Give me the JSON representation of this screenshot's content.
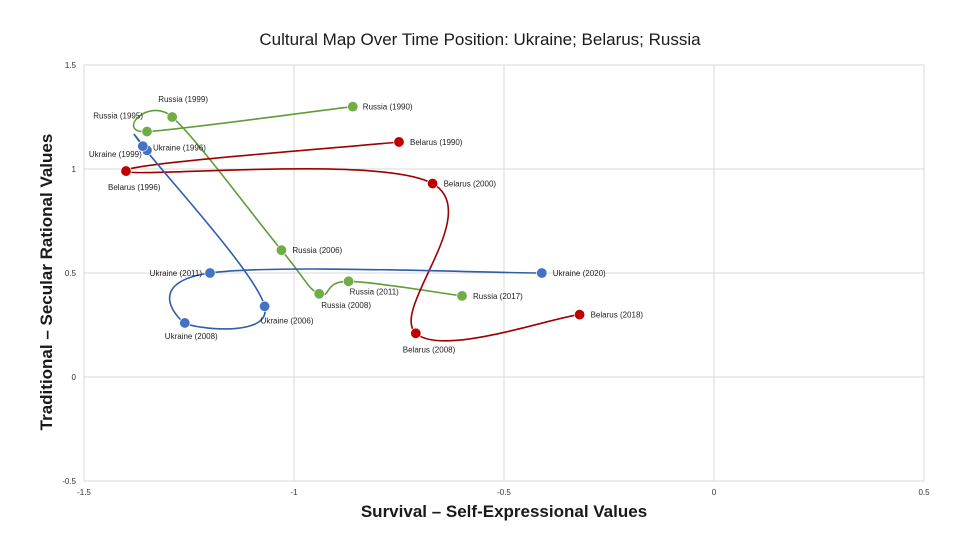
{
  "chart_data": {
    "type": "scatter",
    "title": "Cultural Map Over Time Position: Ukraine; Belarus; Russia",
    "xlabel": "Survival – Self-Expressional Values",
    "ylabel": "Traditional – Secular Rational Values",
    "xlim": [
      -1.5,
      0.5
    ],
    "ylim": [
      -0.5,
      1.5
    ],
    "x_ticks": [
      "-1.5",
      "-1",
      "-0.5",
      "0",
      "0.5"
    ],
    "y_ticks": [
      "-0.5",
      "0",
      "0.5",
      "1",
      "1.5"
    ],
    "grid": true,
    "legend": "none",
    "series": [
      {
        "color": "#70ad47",
        "points": [
          {
            "label": "Russia (1990)",
            "x": -0.86,
            "y": 1.3
          },
          {
            "label": "Russia (1995)",
            "x": -1.35,
            "y": 1.18
          },
          {
            "label": "Russia (1999)",
            "x": -1.29,
            "y": 1.25
          },
          {
            "label": "Russia (2006)",
            "x": -1.03,
            "y": 0.61
          },
          {
            "label": "Russia (2008)",
            "x": -0.94,
            "y": 0.4
          },
          {
            "label": "Russia (2011)",
            "x": -0.87,
            "y": 0.46
          },
          {
            "label": "Russia (2017)",
            "x": -0.6,
            "y": 0.39
          }
        ]
      },
      {
        "color": "#c00000",
        "points": [
          {
            "label": "Belarus (1990)",
            "x": -0.75,
            "y": 1.13
          },
          {
            "label": "Belarus (1996)",
            "x": -1.4,
            "y": 0.99
          },
          {
            "label": "Belarus (2000)",
            "x": -0.67,
            "y": 0.93
          },
          {
            "label": "Belarus (2008)",
            "x": -0.71,
            "y": 0.21
          },
          {
            "label": "Belarus (2018)",
            "x": -0.32,
            "y": 0.3
          }
        ]
      },
      {
        "color": "#4472c4",
        "points": [
          {
            "label": "Ukraine (1996)",
            "x": -1.35,
            "y": 1.09
          },
          {
            "label": "Ukraine (1999)",
            "x": -1.36,
            "y": 1.11
          },
          {
            "label": "Ukraine (2006)",
            "x": -1.07,
            "y": 0.34
          },
          {
            "label": "Ukraine (2008)",
            "x": -1.26,
            "y": 0.26
          },
          {
            "label": "Ukraine (2011)",
            "x": -1.2,
            "y": 0.5
          },
          {
            "label": "Ukraine (2020)",
            "x": -0.41,
            "y": 0.5
          }
        ]
      }
    ]
  }
}
